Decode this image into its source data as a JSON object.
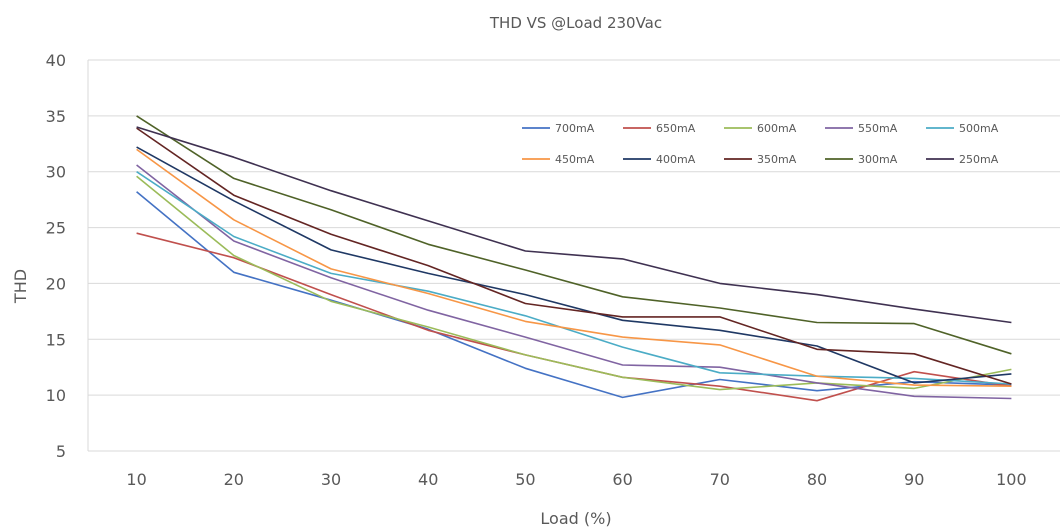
{
  "chart_data": {
    "type": "line",
    "title": "THD VS @Load 230Vac",
    "xlabel": "Load (%)",
    "ylabel": "THD",
    "categories": [
      "10",
      "20",
      "30",
      "40",
      "50",
      "60",
      "70",
      "80",
      "90",
      "100"
    ],
    "ylim": [
      5,
      40
    ],
    "yticks": [
      "5",
      "10",
      "15",
      "20",
      "25",
      "30",
      "35",
      "40"
    ],
    "grid": true,
    "legend_position": "top-right",
    "series": [
      {
        "name": "700mA",
        "color": "#4472C4",
        "values": [
          28.2,
          21.0,
          18.5,
          15.9,
          12.4,
          9.8,
          11.4,
          10.4,
          11.2,
          10.9
        ]
      },
      {
        "name": "650mA",
        "color": "#C0504D",
        "values": [
          24.5,
          22.3,
          19.0,
          15.8,
          13.6,
          11.6,
          10.8,
          9.5,
          12.1,
          10.8
        ]
      },
      {
        "name": "600mA",
        "color": "#9BBB59",
        "values": [
          29.6,
          22.5,
          18.4,
          16.1,
          13.6,
          11.6,
          10.5,
          11.1,
          10.6,
          12.3
        ]
      },
      {
        "name": "550mA",
        "color": "#8064A2",
        "values": [
          30.6,
          23.8,
          20.5,
          17.6,
          15.2,
          12.7,
          12.5,
          11.1,
          9.9,
          9.7
        ]
      },
      {
        "name": "500mA",
        "color": "#4BACC6",
        "values": [
          30.0,
          24.2,
          20.9,
          19.3,
          17.1,
          14.3,
          12.0,
          11.7,
          11.5,
          11.0
        ]
      },
      {
        "name": "450mA",
        "color": "#F79646",
        "values": [
          32.0,
          25.7,
          21.3,
          19.1,
          16.6,
          15.2,
          14.5,
          11.7,
          10.9,
          10.8
        ]
      },
      {
        "name": "400mA",
        "color": "#1F3864",
        "values": [
          32.2,
          27.4,
          23.0,
          20.9,
          19.0,
          16.7,
          15.8,
          14.4,
          11.1,
          11.9
        ]
      },
      {
        "name": "350mA",
        "color": "#632523",
        "values": [
          33.9,
          27.9,
          24.4,
          21.6,
          18.2,
          17.0,
          17.0,
          14.1,
          13.7,
          11.0
        ]
      },
      {
        "name": "300mA",
        "color": "#4F6228",
        "values": [
          35.0,
          29.4,
          26.6,
          23.5,
          21.2,
          18.8,
          17.8,
          16.5,
          16.4,
          13.7
        ]
      },
      {
        "name": "250mA",
        "color": "#3F3151",
        "values": [
          34.0,
          31.3,
          28.3,
          25.6,
          22.9,
          22.2,
          20.0,
          19.0,
          17.7,
          16.5
        ]
      }
    ]
  }
}
